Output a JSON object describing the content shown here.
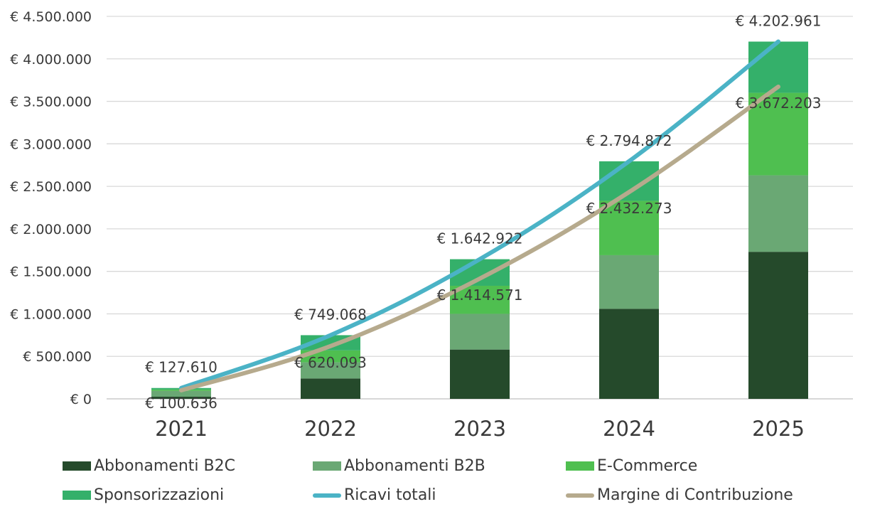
{
  "chart_data": {
    "type": "bar",
    "stacked": true,
    "categories": [
      "2021",
      "2022",
      "2023",
      "2024",
      "2025"
    ],
    "ylim": [
      0,
      4500000
    ],
    "yticks": [
      0,
      500000,
      1000000,
      1500000,
      2000000,
      2500000,
      3000000,
      3500000,
      4000000,
      4500000
    ],
    "ytick_labels": [
      "€ 0",
      "€ 500.000",
      "€ 1.000.000",
      "€ 1.500.000",
      "€ 2.000.000",
      "€ 2.500.000",
      "€ 3.000.000",
      "€ 3.500.000",
      "€ 4.000.000",
      "€ 4.500.000"
    ],
    "grid": true,
    "legend_position": "bottom",
    "series": [
      {
        "name": "Abbonamenti B2C",
        "kind": "bar",
        "color": "#254a2b",
        "values": [
          25000,
          240000,
          580000,
          1060000,
          1730000
        ]
      },
      {
        "name": "Abbonamenti B2B",
        "kind": "bar",
        "color": "#6aa874",
        "values": [
          70000,
          190000,
          420000,
          630000,
          900000
        ]
      },
      {
        "name": "E-Commerce",
        "kind": "bar",
        "color": "#4fbf50",
        "values": [
          15000,
          140000,
          330000,
          640000,
          970000
        ]
      },
      {
        "name": "Sponsorizzazioni",
        "kind": "bar",
        "color": "#34b06a",
        "values": [
          17610,
          179068,
          312922,
          464872,
          602961
        ]
      },
      {
        "name": "Ricavi totali",
        "kind": "line",
        "color": "#4bb3c6",
        "values": [
          127610,
          749068,
          1642922,
          2794872,
          4202961
        ],
        "labels": [
          "€ 127.610",
          "€ 749.068",
          "€ 1.642.922",
          "€ 2.794.872",
          "€ 4.202.961"
        ]
      },
      {
        "name": "Margine di Contribuzione",
        "kind": "line",
        "color": "#b6aa8d",
        "values": [
          100636,
          620093,
          1414571,
          2432273,
          3672203
        ],
        "labels": [
          "€ 100.636",
          "€ 620.093",
          "€ 1.414.571",
          "€ 2.432.273",
          "€ 3.672.203"
        ]
      }
    ]
  }
}
